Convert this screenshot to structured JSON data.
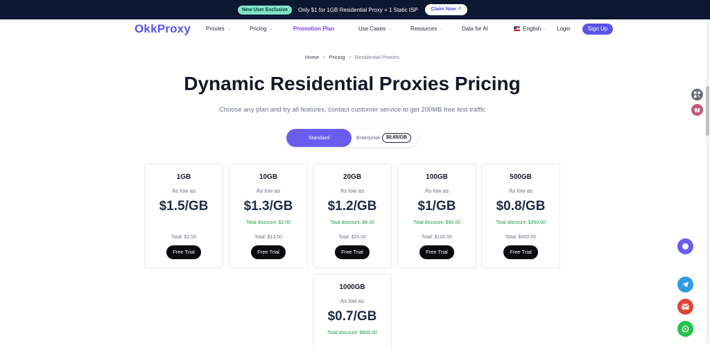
{
  "promo": {
    "badge": "New User Exclusive",
    "text": "Only $1 for 1GB Residential Proxy + 1 Static ISP",
    "claim_label": "Claim Now ↗"
  },
  "nav": {
    "logo": "OkkProxy",
    "items": [
      "Proxies",
      "Pricing",
      "Promotion Plan",
      "Use Cases",
      "Resources",
      "Data for AI"
    ],
    "language": "English",
    "login": "Login",
    "signup": "Sign Up"
  },
  "breadcrumb": [
    "Home",
    "Pricing",
    "Residential Proxies"
  ],
  "page": {
    "title": "Dynamic Residential Proxies Pricing",
    "subtitle": "Choose any plan and try all features, contact customer service to get 200MB free test traffic"
  },
  "toggle": {
    "standard": "Standard",
    "enterprise": "Enterprise",
    "enterprise_price": "$0.65/GB"
  },
  "plans": [
    {
      "size": "1GB",
      "low": "As low as",
      "price": "$1.5/GB",
      "discount": "",
      "total": "Total: $1.50",
      "button": "Free Trial"
    },
    {
      "size": "10GB",
      "low": "As low as",
      "price": "$1.3/GB",
      "discount": "Total discount: $2.00",
      "total": "Total: $13.00",
      "button": "Free Trial"
    },
    {
      "size": "20GB",
      "low": "As low as",
      "price": "$1.2/GB",
      "discount": "Total discount: $6.00",
      "total": "Total: $24.00",
      "button": "Free Trial"
    },
    {
      "size": "100GB",
      "low": "As low as",
      "price": "$1/GB",
      "discount": "Total discount: $50.00",
      "total": "Total: $100.00",
      "button": "Free Trial"
    },
    {
      "size": "500GB",
      "low": "As low as",
      "price": "$0.8/GB",
      "discount": "Total discount: $350.00",
      "total": "Total: $400.00",
      "button": "Free Trial"
    },
    {
      "size": "1000GB",
      "low": "As low as",
      "price": "$0.7/GB",
      "discount": "Total discount: $800.00",
      "total": "",
      "button": ""
    }
  ],
  "floating": {
    "chat_icon": "chat-bubble-icon",
    "telegram_icon": "telegram-icon",
    "email_icon": "email-icon",
    "whatsapp_icon": "whatsapp-icon"
  },
  "colors": {
    "brand": "#5a53e8",
    "promo_bg": "#0c1730",
    "discount_green": "#1f9d4c",
    "trial_button": "#0b0b0f"
  }
}
